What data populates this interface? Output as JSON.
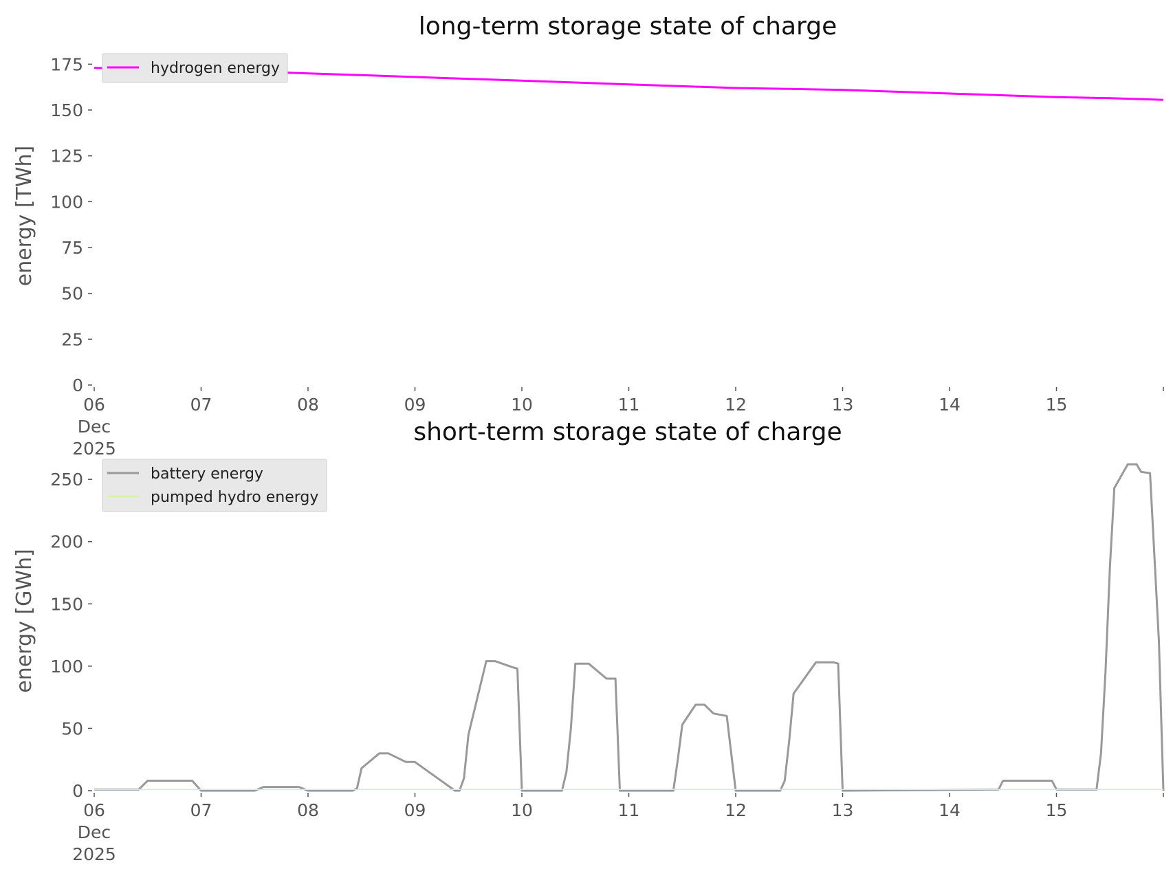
{
  "chart_data": [
    {
      "type": "line",
      "title": "long-term storage state of charge",
      "xlabel": "",
      "ylabel": "energy [TWh]",
      "ylim": [
        0,
        180
      ],
      "xlim": [
        "2025-12-06 00:00",
        "2025-12-16 00:00"
      ],
      "yticks": [
        0,
        25,
        50,
        75,
        100,
        125,
        150,
        175
      ],
      "xtick_labels": [
        [
          "06",
          "Dec",
          "2025"
        ],
        [
          "07"
        ],
        [
          "08"
        ],
        [
          "09"
        ],
        [
          "10"
        ],
        [
          "11"
        ],
        [
          "12"
        ],
        [
          "13"
        ],
        [
          "14"
        ],
        [
          "15"
        ],
        [
          ""
        ]
      ],
      "grid": false,
      "legend_position": "upper-left",
      "series": [
        {
          "name": "hydrogen energy",
          "color": "#ff00ff",
          "x": [
            "2025-12-06 00:00",
            "2025-12-07 00:00",
            "2025-12-08 00:00",
            "2025-12-08 12:00",
            "2025-12-09 00:00",
            "2025-12-10 00:00",
            "2025-12-11 00:00",
            "2025-12-12 00:00",
            "2025-12-12 12:00",
            "2025-12-13 00:00",
            "2025-12-14 00:00",
            "2025-12-15 00:00",
            "2025-12-15 12:00",
            "2025-12-16 00:00"
          ],
          "y": [
            173,
            172,
            170,
            169,
            168,
            166,
            164,
            162,
            161.5,
            161,
            159,
            157,
            156.5,
            155.5
          ]
        }
      ]
    },
    {
      "type": "line",
      "title": "short-term storage state of charge",
      "xlabel": "",
      "ylabel": "energy [GWh]",
      "ylim": [
        0,
        265
      ],
      "xlim": [
        "2025-12-06 00:00",
        "2025-12-16 00:00"
      ],
      "yticks": [
        0,
        50,
        100,
        150,
        200,
        250
      ],
      "xtick_labels": [
        [
          "06",
          "Dec",
          "2025"
        ],
        [
          "07"
        ],
        [
          "08"
        ],
        [
          "09"
        ],
        [
          "10"
        ],
        [
          "11"
        ],
        [
          "12"
        ],
        [
          "13"
        ],
        [
          "14"
        ],
        [
          "15"
        ],
        [
          ""
        ]
      ],
      "grid": false,
      "legend_position": "upper-left",
      "series": [
        {
          "name": "battery energy",
          "color": "#999999",
          "x": [
            "2025-12-06 00:00",
            "2025-12-06 10:00",
            "2025-12-06 12:00",
            "2025-12-06 22:00",
            "2025-12-07 00:00",
            "2025-12-07 12:00",
            "2025-12-07 14:00",
            "2025-12-07 22:00",
            "2025-12-08 00:00",
            "2025-12-08 10:00",
            "2025-12-08 11:00",
            "2025-12-08 12:00",
            "2025-12-08 16:00",
            "2025-12-08 18:00",
            "2025-12-08 22:00",
            "2025-12-09 00:00",
            "2025-12-09 09:00",
            "2025-12-09 10:00",
            "2025-12-09 11:00",
            "2025-12-09 12:00",
            "2025-12-09 16:00",
            "2025-12-09 18:00",
            "2025-12-09 22:00",
            "2025-12-09 23:00",
            "2025-12-10 00:00",
            "2025-12-10 09:00",
            "2025-12-10 10:00",
            "2025-12-10 11:00",
            "2025-12-10 12:00",
            "2025-12-10 15:00",
            "2025-12-10 17:00",
            "2025-12-10 19:00",
            "2025-12-10 21:00",
            "2025-12-10 22:00",
            "2025-12-11 00:00",
            "2025-12-11 10:00",
            "2025-12-11 11:00",
            "2025-12-11 12:00",
            "2025-12-11 15:00",
            "2025-12-11 17:00",
            "2025-12-11 19:00",
            "2025-12-11 22:00",
            "2025-12-12 00:00",
            "2025-12-12 10:00",
            "2025-12-12 11:00",
            "2025-12-12 12:00",
            "2025-12-12 13:00",
            "2025-12-12 18:00",
            "2025-12-12 22:00",
            "2025-12-12 23:00",
            "2025-12-13 00:00",
            "2025-12-14 11:00",
            "2025-12-14 12:00",
            "2025-12-14 23:00",
            "2025-12-15 00:00",
            "2025-12-15 09:00",
            "2025-12-15 10:00",
            "2025-12-15 11:00",
            "2025-12-15 12:00",
            "2025-12-15 13:00",
            "2025-12-15 16:00",
            "2025-12-15 18:00",
            "2025-12-15 19:00",
            "2025-12-15 21:00",
            "2025-12-15 23:00",
            "2025-12-16 00:00"
          ],
          "y": [
            1,
            1,
            8,
            8,
            0,
            0,
            3,
            3,
            0,
            0,
            2,
            18,
            30,
            30,
            23,
            23,
            0,
            0,
            10,
            45,
            104,
            104,
            99,
            98,
            0,
            0,
            15,
            50,
            102,
            102,
            96,
            90,
            90,
            0,
            0,
            0,
            25,
            53,
            69,
            69,
            62,
            60,
            0,
            0,
            8,
            40,
            78,
            103,
            103,
            102,
            0,
            1,
            8,
            8,
            1,
            1,
            30,
            95,
            180,
            243,
            262,
            262,
            256,
            255,
            120,
            0
          ]
        },
        {
          "name": "pumped hydro energy",
          "color": "#d6f5a3",
          "x": [
            "2025-12-06 00:00",
            "2025-12-16 00:00"
          ],
          "y": [
            1,
            1
          ]
        }
      ]
    }
  ]
}
